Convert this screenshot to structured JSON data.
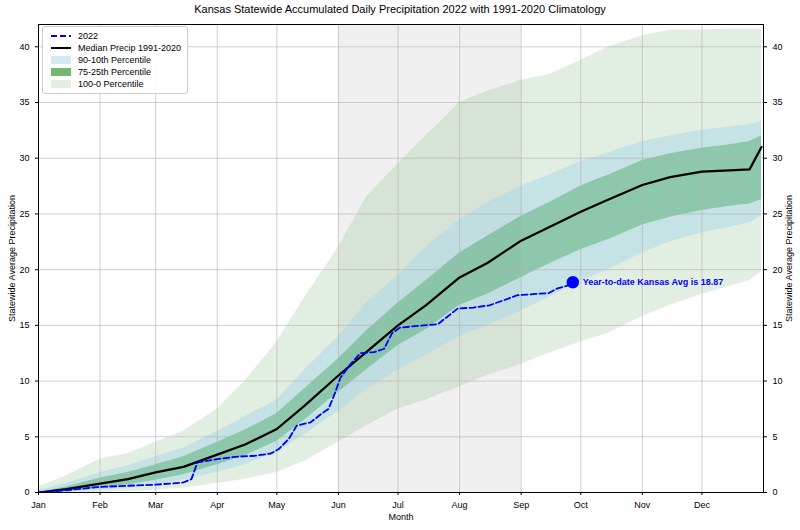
{
  "chart_data": {
    "type": "line",
    "title": "Kansas Statewide Accumulated Daily Precipitation 2022 with 1991-2020 Climatology",
    "x_label": "Month",
    "y_label": "Statewide Average Precipitation",
    "xlim": [
      1,
      366
    ],
    "xticks": [
      {
        "value": 1,
        "label": "Jan"
      },
      {
        "value": 32,
        "label": "Feb"
      },
      {
        "value": 60,
        "label": "Mar"
      },
      {
        "value": 91,
        "label": "Apr"
      },
      {
        "value": 121,
        "label": "May"
      },
      {
        "value": 152,
        "label": "Jun"
      },
      {
        "value": 182,
        "label": "Jul"
      },
      {
        "value": 213,
        "label": "Aug"
      },
      {
        "value": 244,
        "label": "Sep"
      },
      {
        "value": 274,
        "label": "Oct"
      },
      {
        "value": 305,
        "label": "Nov"
      },
      {
        "value": 335,
        "label": "Dec"
      }
    ],
    "ylim": [
      0,
      42
    ],
    "yticks": [
      0,
      5,
      10,
      15,
      20,
      25,
      30,
      35,
      40
    ],
    "y2lim": [
      0,
      42
    ],
    "y2ticks": [
      0,
      5,
      10,
      15,
      20,
      25,
      30,
      35,
      40
    ],
    "grid": true,
    "legend": "upper left",
    "shaded_region": [
      152,
      244
    ],
    "series": [
      {
        "name": "2022",
        "type": "line",
        "color": "#0000ff",
        "line_style": "dashed",
        "x": [
          1,
          15,
          32,
          45,
          60,
          74,
          78,
          81,
          91,
          100,
          110,
          118,
          122,
          127,
          131,
          138,
          143,
          147,
          150,
          153,
          158,
          163,
          170,
          175,
          179,
          183,
          195,
          202,
          207,
          212,
          220,
          228,
          236,
          242,
          250,
          258,
          262,
          268,
          270
        ],
        "values": [
          0,
          0.2,
          0.5,
          0.6,
          0.7,
          0.9,
          1.2,
          2.7,
          3.0,
          3.2,
          3.3,
          3.5,
          3.9,
          4.8,
          6.0,
          6.3,
          7.0,
          7.5,
          8.8,
          10.3,
          11.5,
          12.5,
          12.6,
          12.9,
          14.3,
          14.8,
          15.0,
          15.1,
          15.8,
          16.5,
          16.6,
          16.8,
          17.3,
          17.7,
          17.8,
          17.9,
          18.3,
          18.6,
          18.87
        ]
      },
      {
        "name": "Median Precip 1991-2020",
        "type": "line",
        "color": "#000000",
        "line_style": "solid",
        "x": [
          1,
          15,
          32,
          46,
          60,
          74,
          91,
          105,
          121,
          135,
          152,
          166,
          182,
          196,
          213,
          227,
          244,
          258,
          274,
          288,
          305,
          319,
          335,
          349,
          359,
          365
        ],
        "values": [
          0,
          0.3,
          0.8,
          1.2,
          1.8,
          2.3,
          3.4,
          4.3,
          5.7,
          7.8,
          10.5,
          12.6,
          15.0,
          16.8,
          19.3,
          20.6,
          22.6,
          23.8,
          25.2,
          26.3,
          27.6,
          28.3,
          28.8,
          28.9,
          29.0,
          31.0
        ]
      },
      {
        "name": "90-10th Percentile",
        "type": "area",
        "color": "#add8e6",
        "x": [
          1,
          15,
          32,
          46,
          60,
          74,
          91,
          105,
          121,
          135,
          152,
          166,
          182,
          196,
          213,
          227,
          244,
          258,
          274,
          288,
          305,
          319,
          335,
          349,
          359,
          365
        ],
        "lower": [
          0,
          0.0,
          0.2,
          0.4,
          0.7,
          1.1,
          1.8,
          2.5,
          3.6,
          5.2,
          7.3,
          9.2,
          11.0,
          12.3,
          14.0,
          15.0,
          16.3,
          17.5,
          19.0,
          20.0,
          21.5,
          22.5,
          23.3,
          23.8,
          24.2,
          24.8
        ],
        "upper": [
          0.2,
          0.8,
          1.8,
          2.4,
          3.2,
          4.0,
          5.5,
          6.8,
          8.3,
          11.0,
          14.0,
          17.0,
          19.5,
          22.0,
          24.5,
          26.0,
          27.5,
          28.5,
          29.7,
          30.5,
          31.5,
          32.0,
          32.5,
          32.8,
          33.0,
          33.3
        ]
      },
      {
        "name": "75-25th Percentile",
        "type": "area",
        "color": "#008000",
        "x": [
          1,
          15,
          32,
          46,
          60,
          74,
          91,
          105,
          121,
          135,
          152,
          166,
          182,
          196,
          213,
          227,
          244,
          258,
          274,
          288,
          305,
          319,
          335,
          349,
          359,
          365
        ],
        "lower": [
          0,
          0.1,
          0.4,
          0.7,
          1.1,
          1.6,
          2.5,
          3.3,
          4.6,
          6.5,
          9.0,
          11.0,
          13.2,
          14.6,
          16.8,
          17.8,
          19.3,
          20.5,
          21.8,
          22.7,
          24.0,
          24.7,
          25.3,
          25.7,
          25.9,
          26.3
        ],
        "upper": [
          0,
          0.5,
          1.3,
          1.8,
          2.5,
          3.2,
          4.5,
          5.6,
          7.1,
          9.3,
          12.0,
          14.5,
          17.0,
          19.0,
          21.5,
          23.0,
          24.8,
          26.0,
          27.5,
          28.5,
          29.8,
          30.4,
          30.9,
          31.2,
          31.5,
          32.0
        ]
      },
      {
        "name": "100-0 Percentile",
        "type": "area",
        "color": "#8fbc8f",
        "x": [
          1,
          15,
          32,
          46,
          60,
          74,
          91,
          105,
          121,
          135,
          152,
          166,
          182,
          196,
          213,
          227,
          244,
          258,
          274,
          288,
          305,
          319,
          335,
          349,
          359,
          365
        ],
        "lower": [
          0,
          0,
          0,
          0.1,
          0.2,
          0.4,
          0.8,
          1.2,
          1.8,
          2.8,
          4.5,
          6.0,
          7.5,
          8.3,
          9.5,
          10.5,
          11.5,
          12.5,
          13.5,
          14.3,
          15.8,
          16.8,
          17.8,
          18.5,
          19.0,
          19.8
        ],
        "upper": [
          0.5,
          1.5,
          3.0,
          3.5,
          4.5,
          5.5,
          7.5,
          10.0,
          13.5,
          17.5,
          22.0,
          26.5,
          29.5,
          32.0,
          35.0,
          36.0,
          37.0,
          37.5,
          38.8,
          40.0,
          41.0,
          41.5,
          41.5,
          41.6,
          41.6,
          41.6
        ]
      }
    ],
    "annotations": [
      {
        "text": "Year-to-date Kansas Avg is 18.87",
        "x": 270,
        "y": 18.87,
        "color": "#0000ff"
      }
    ]
  }
}
